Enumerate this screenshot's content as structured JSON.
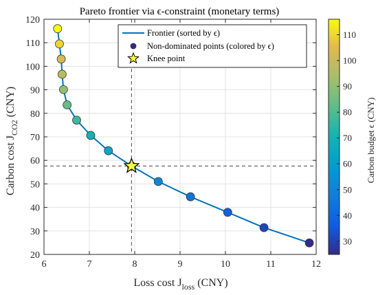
{
  "chart_data": {
    "type": "line",
    "title": "Pareto frontier via ϵ-constraint (monetary terms)",
    "xlabel": {
      "base": "Loss cost J",
      "sub": "loss",
      "suffix": " (CNY)"
    },
    "ylabel": {
      "base": "Carbon cost J",
      "sub": "CO2",
      "suffix": " (CNY)"
    },
    "xlim": [
      6,
      12
    ],
    "ylim": [
      20,
      120
    ],
    "xticks": [
      6,
      7,
      8,
      9,
      10,
      11,
      12
    ],
    "yticks": [
      20,
      30,
      40,
      50,
      60,
      70,
      80,
      90,
      100,
      110,
      120
    ],
    "grid": true,
    "legend_position": "top-right",
    "series": [
      {
        "name": "Frontier (sorted by ϵ)",
        "kind": "line",
        "color": "#0072BD",
        "x": [
          6.3,
          6.34,
          6.38,
          6.4,
          6.43,
          6.51,
          6.72,
          7.03,
          7.42,
          7.93,
          8.52,
          9.23,
          10.05,
          10.85,
          11.85
        ],
        "y": [
          116.0,
          109.5,
          103.1,
          96.6,
          90.1,
          83.6,
          77.1,
          70.6,
          64.1,
          57.6,
          51.0,
          44.5,
          37.9,
          31.4,
          24.9
        ]
      },
      {
        "name": "Non-dominated points (colored by ϵ)",
        "kind": "scatter",
        "x": [
          6.3,
          6.34,
          6.38,
          6.4,
          6.43,
          6.51,
          6.72,
          7.03,
          7.42,
          7.93,
          8.52,
          9.23,
          10.05,
          10.85,
          11.85
        ],
        "y": [
          116.0,
          109.5,
          103.1,
          96.6,
          90.1,
          83.6,
          77.1,
          70.6,
          64.1,
          57.6,
          51.0,
          44.5,
          37.9,
          31.4,
          24.9
        ],
        "c": [
          116.0,
          109.5,
          103.1,
          96.6,
          90.1,
          83.6,
          77.1,
          70.6,
          64.1,
          57.6,
          51.0,
          44.5,
          37.9,
          31.4,
          24.9
        ]
      },
      {
        "name": "Knee point",
        "kind": "marker",
        "marker": "star",
        "color": "#FFFF44",
        "x": [
          7.93
        ],
        "y": [
          57.6
        ]
      }
    ],
    "reference_lines": {
      "x": 7.93,
      "y": 57.6,
      "style": "dashed",
      "color": "#555555"
    },
    "colorbar": {
      "label": "Carbon budget ϵ (CNY)",
      "range": [
        24.9,
        116.0
      ],
      "ticks": [
        30,
        40,
        50,
        60,
        70,
        80,
        90,
        100,
        110
      ],
      "colormap": "parula"
    }
  }
}
